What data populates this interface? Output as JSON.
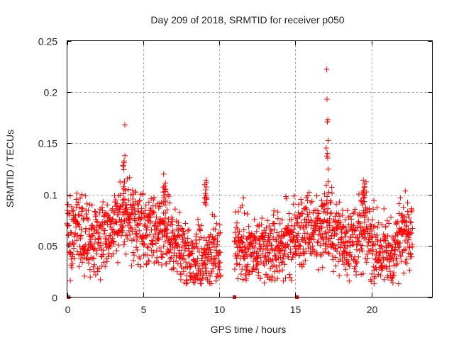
{
  "chart_data": {
    "type": "scatter",
    "title": "Day 209 of 2018, SRMTID for receiver p050",
    "xlabel": "GPS time / hours",
    "ylabel": "SRMTID / TECUs",
    "xlim": [
      0,
      24
    ],
    "ylim": [
      0,
      0.25
    ],
    "xticks": [
      0,
      5,
      10,
      15,
      20
    ],
    "xtick_labels": [
      "0",
      "5",
      "10",
      "15",
      "20"
    ],
    "yticks": [
      0,
      0.05,
      0.1,
      0.15,
      0.2,
      0.25
    ],
    "ytick_labels": [
      "0",
      "0.05",
      "0.1",
      "0.15",
      "0.2",
      "0.25"
    ],
    "grid": true,
    "marker": "+",
    "color": "#ff0000",
    "series": [
      {
        "name": "SRMTID",
        "data_extent_hours": [
          0,
          22.7
        ],
        "gap_hours": [
          10.1,
          11.0
        ],
        "trend": {
          "x": [
            0,
            1,
            2,
            3,
            3.8,
            4.5,
            5.5,
            6.5,
            7.5,
            8.3,
            9,
            10,
            11,
            12,
            13,
            14,
            15,
            16,
            17,
            18,
            19,
            19.6,
            20.5,
            21.3,
            22,
            22.7
          ],
          "y": [
            0.065,
            0.06,
            0.058,
            0.07,
            0.08,
            0.07,
            0.06,
            0.062,
            0.048,
            0.038,
            0.04,
            0.045,
            0.055,
            0.045,
            0.04,
            0.05,
            0.06,
            0.065,
            0.07,
            0.058,
            0.055,
            0.065,
            0.045,
            0.04,
            0.06,
            0.075
          ]
        },
        "spikes": [
          {
            "x": 3.75,
            "y_max": 0.168
          },
          {
            "x": 17.1,
            "y_max": 0.222
          },
          {
            "x": 6.4,
            "y_max": 0.12
          },
          {
            "x": 9.1,
            "y_max": 0.114
          },
          {
            "x": 19.5,
            "y_max": 0.114
          }
        ],
        "zero_points_x": [
          0.1,
          11.0,
          15.1
        ]
      }
    ]
  }
}
